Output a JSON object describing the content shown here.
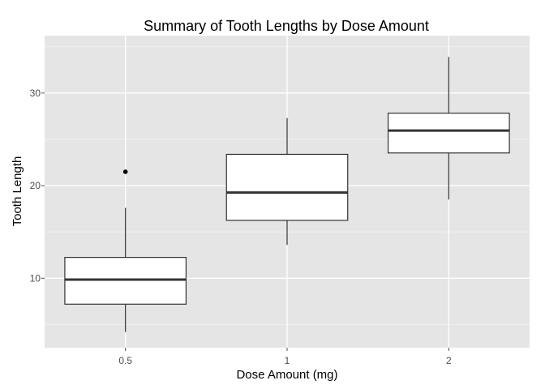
{
  "chart_data": {
    "type": "box",
    "title": "Summary of Tooth Lengths by Dose Amount",
    "xlabel": "Dose Amount (mg)",
    "ylabel": "Tooth Length",
    "categories": [
      "0.5",
      "1",
      "2"
    ],
    "ylim": [
      2.5,
      36.2
    ],
    "yticks": [
      10,
      20,
      30
    ],
    "grid": true,
    "boxes": [
      {
        "category": "0.5",
        "whisker_low": 4.2,
        "q1": 7.2,
        "median": 9.85,
        "q3": 12.25,
        "whisker_high": 17.6,
        "outliers": [
          21.5
        ]
      },
      {
        "category": "1",
        "whisker_low": 13.6,
        "q1": 16.25,
        "median": 19.25,
        "q3": 23.38,
        "whisker_high": 27.3,
        "outliers": []
      },
      {
        "category": "2",
        "whisker_low": 18.5,
        "q1": 23.53,
        "median": 25.95,
        "q3": 27.83,
        "whisker_high": 33.9,
        "outliers": []
      }
    ],
    "colors": {
      "panel": "#e5e5e5",
      "grid_major": "#ffffff",
      "grid_minor": "#f2f2f2",
      "box_fill": "#ffffff",
      "box_stroke": "#333333",
      "tick_label": "#4d4d4d"
    }
  }
}
